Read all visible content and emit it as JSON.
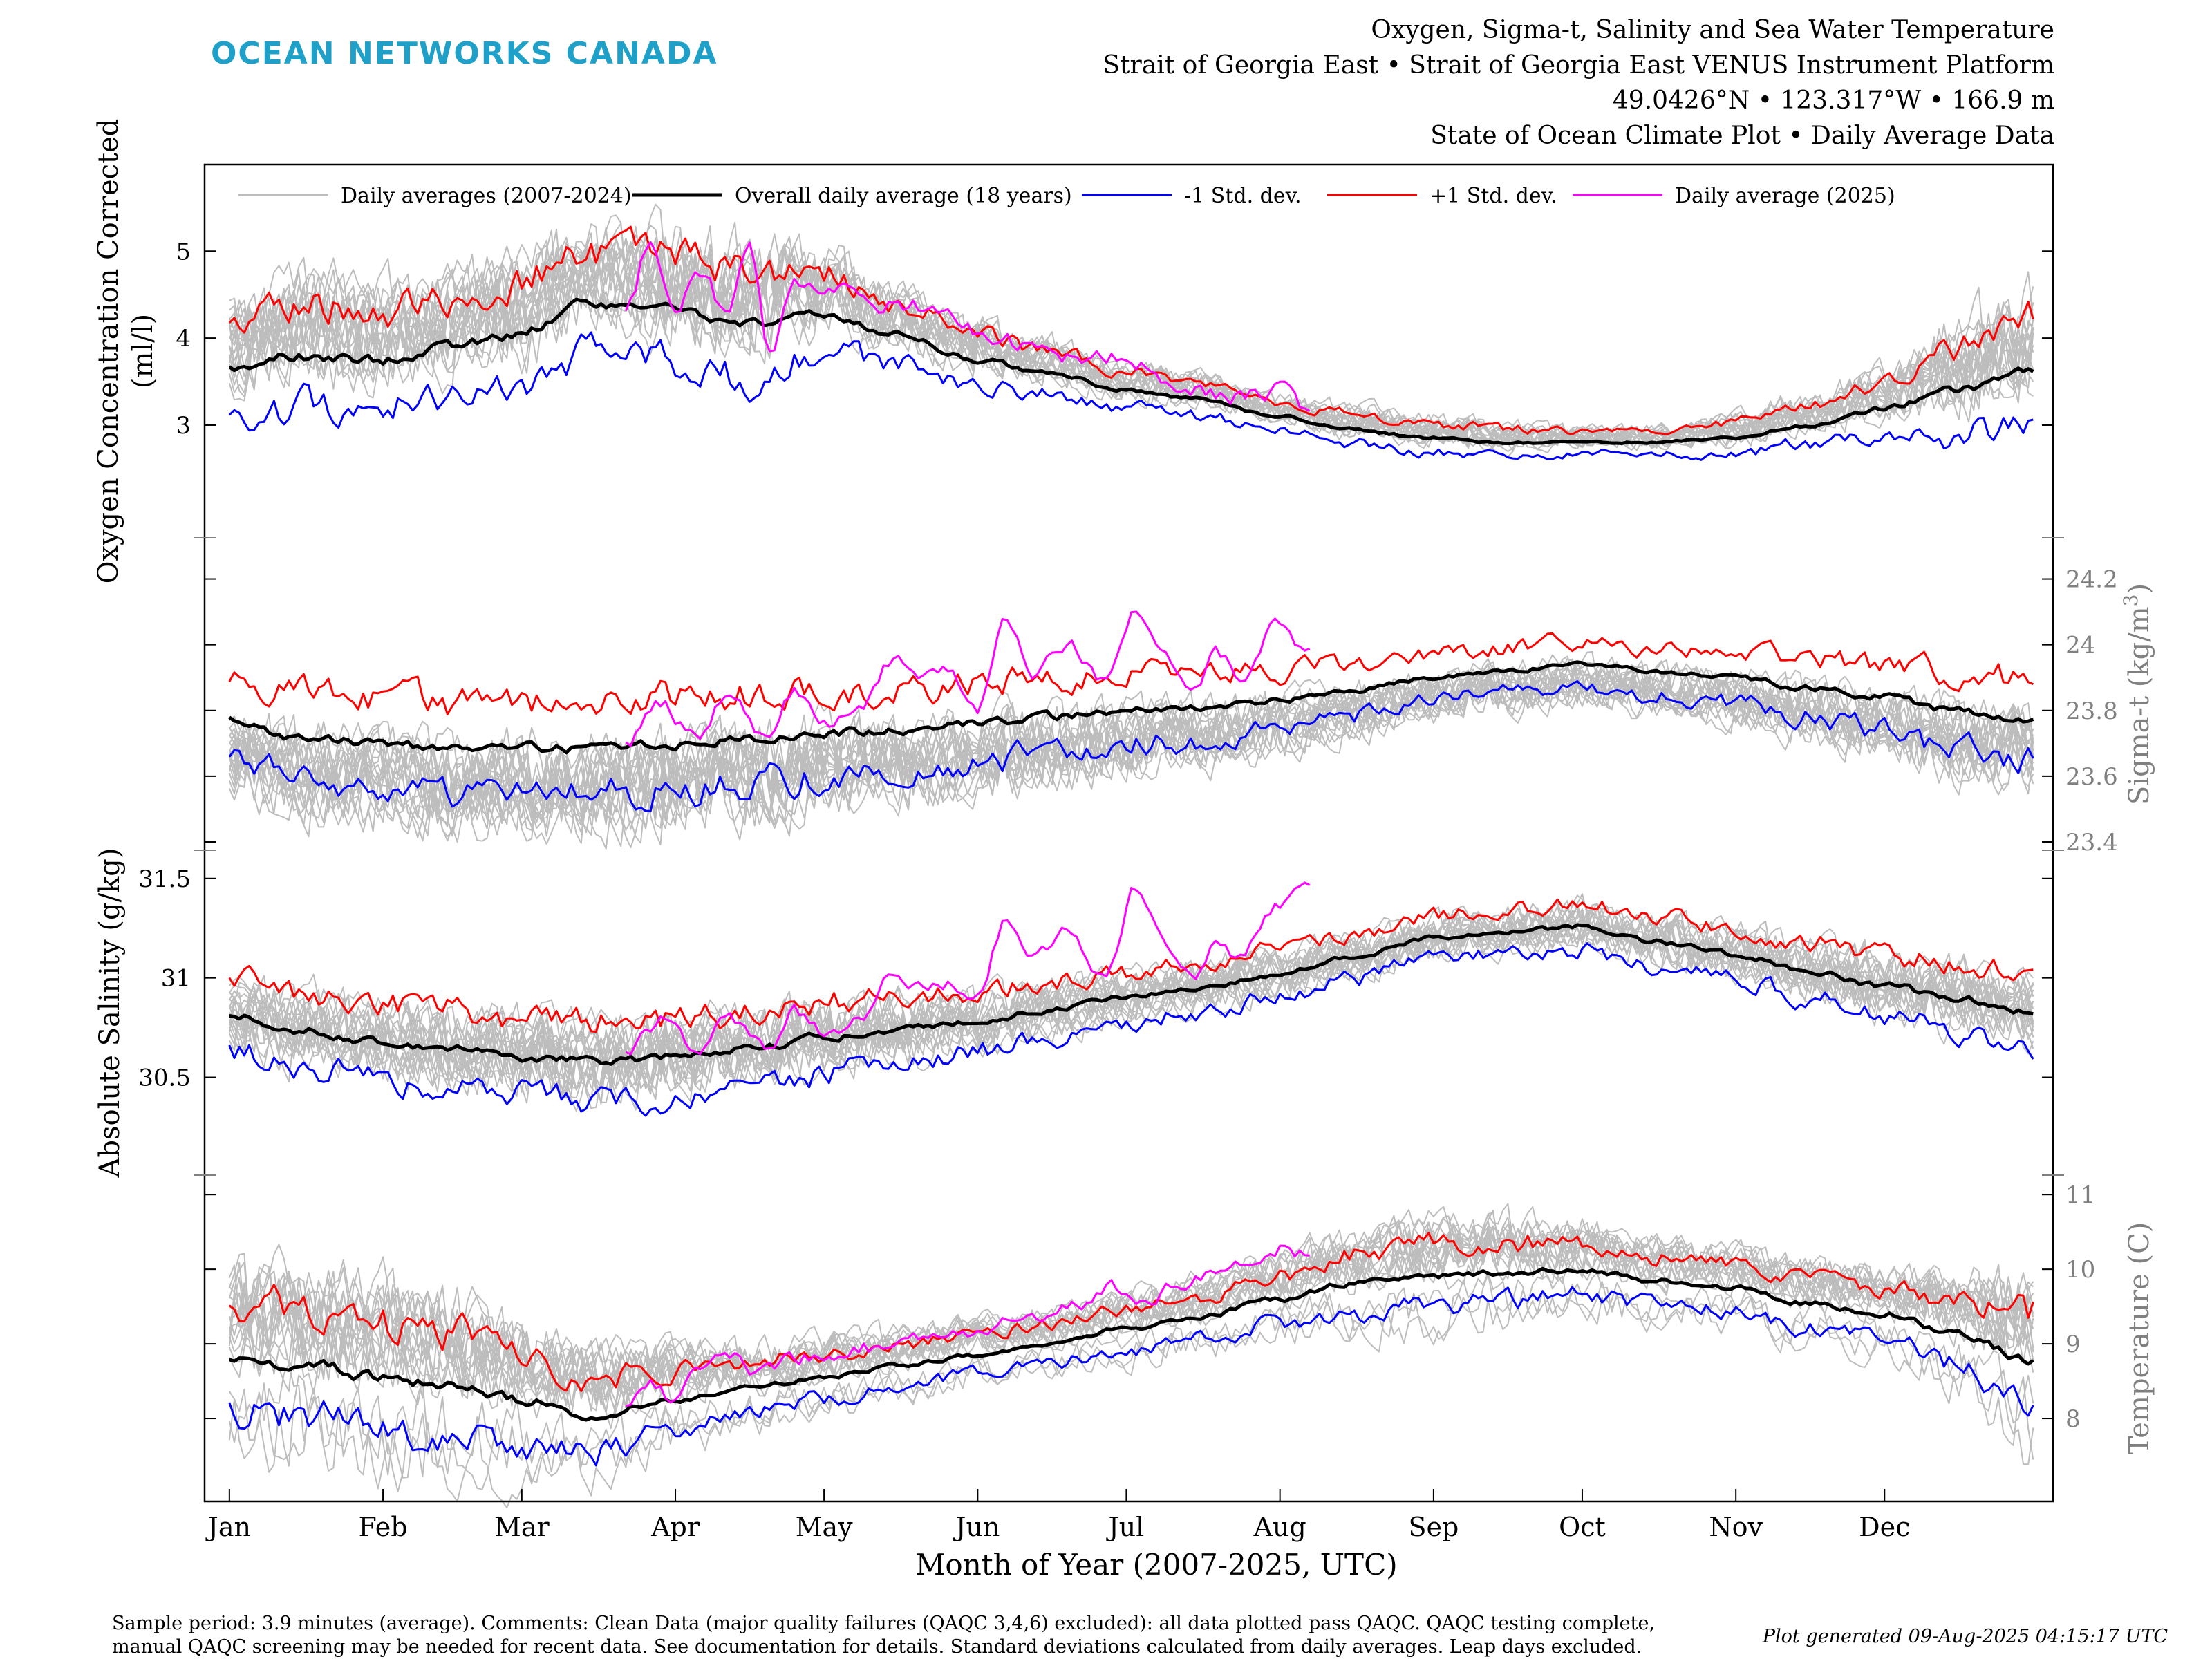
{
  "brand": "OCEAN NETWORKS CANADA",
  "header": {
    "line1": "Oxygen, Sigma-t, Salinity and Sea Water Temperature",
    "line2": "Strait of Georgia East • Strait of Georgia East VENUS Instrument Platform",
    "line3": "49.0426°N • 123.317°W • 166.9 m",
    "line4": "State of Ocean Climate Plot • Daily Average Data"
  },
  "footer": {
    "line1": "Sample period: 3.9 minutes (average). Comments: Clean Data (major quality failures (QAQC 3,4,6) excluded): all data plotted pass QAQC. QAQC testing complete,",
    "line2": "manual QAQC screening may be needed for recent data. See documentation for details. Standard deviations calculated from daily averages. Leap days excluded.",
    "generated": "Plot generated 09-Aug-2025 04:15:17 UTC"
  },
  "colors": {
    "brand": "#1ea0c8",
    "historical": "#bdbdbd",
    "overall_mean": "#000000",
    "minus_std": "#0000ff",
    "plus_std": "#ff0000",
    "current_year": "#ff00ff",
    "axis_gray": "#808080"
  },
  "chart_data": {
    "type": "line",
    "xlabel": "Month of Year (2007-2025, UTC)",
    "x_ticks": [
      "Jan",
      "Feb",
      "Mar",
      "Apr",
      "May",
      "Jun",
      "Jul",
      "Aug",
      "Sep",
      "Oct",
      "Nov",
      "Dec"
    ],
    "x_tick_days": [
      1,
      32,
      60,
      91,
      121,
      152,
      182,
      213,
      244,
      274,
      305,
      335
    ],
    "xlim": [
      -4,
      369
    ],
    "legend": [
      {
        "label": "Daily averages (2007-2024)",
        "key": "historical"
      },
      {
        "label": "Overall daily average (18 years)",
        "key": "overall_mean"
      },
      {
        "label": "-1 Std. dev.",
        "key": "minus_std"
      },
      {
        "label": "+1 Std. dev.",
        "key": "plus_std"
      },
      {
        "label": "Daily average (2025)",
        "key": "current_year"
      }
    ],
    "legend_position": "top",
    "historical_years": 18,
    "panels": [
      {
        "variable": "Oxygen Concentration Corrected",
        "ylabel_line1": "Oxygen Concentration Corrected",
        "ylabel_line2": "(ml/l)",
        "axis_side": "left",
        "ylim": [
          1.8,
          5.9
        ],
        "ticks": [
          "3",
          "4",
          "5"
        ],
        "tick_values": [
          3,
          4,
          5
        ],
        "anchors_day": [
          1,
          15,
          32,
          46,
          60,
          74,
          91,
          105,
          121,
          135,
          152,
          166,
          182,
          196,
          213,
          227,
          244,
          258,
          274,
          288,
          305,
          319,
          335,
          349,
          365
        ],
        "mean": [
          3.65,
          3.8,
          3.75,
          3.9,
          4.05,
          4.4,
          4.35,
          4.15,
          4.3,
          4.05,
          3.75,
          3.6,
          3.4,
          3.3,
          3.1,
          2.95,
          2.85,
          2.8,
          2.8,
          2.8,
          2.85,
          3.0,
          3.2,
          3.4,
          3.65
        ],
        "std": [
          0.55,
          0.6,
          0.55,
          0.55,
          0.65,
          0.55,
          0.6,
          0.6,
          0.45,
          0.35,
          0.3,
          0.25,
          0.2,
          0.2,
          0.15,
          0.18,
          0.16,
          0.16,
          0.12,
          0.12,
          0.18,
          0.22,
          0.3,
          0.5,
          0.6
        ],
        "year_2025": {
          "anchors_day": [
            81,
            86,
            91,
            96,
            101,
            106,
            110,
            115,
            120,
            126,
            134,
            145,
            152,
            160,
            170,
            182,
            190,
            197,
            204,
            213,
            219
          ],
          "values": [
            4.3,
            5.1,
            4.4,
            4.8,
            4.3,
            5.0,
            3.8,
            4.7,
            4.5,
            4.6,
            4.4,
            4.3,
            4.1,
            3.95,
            3.75,
            3.8,
            3.55,
            3.4,
            3.35,
            3.4,
            3.2
          ]
        }
      },
      {
        "variable": "Sigma-t",
        "ylabel_line1": "Sigma-t (kg/m",
        "ylabel_sup": "3",
        "ylabel_close": ")",
        "axis_side": "right",
        "ylim": [
          23.4,
          24.3
        ],
        "ticks": [
          "23.4",
          "23.6",
          "23.8",
          "24",
          "24.2"
        ],
        "tick_values": [
          23.4,
          23.6,
          23.8,
          24.0,
          24.2
        ],
        "anchors_day": [
          1,
          15,
          32,
          46,
          60,
          74,
          91,
          105,
          121,
          135,
          152,
          166,
          182,
          196,
          213,
          227,
          244,
          258,
          274,
          288,
          305,
          319,
          335,
          349,
          365
        ],
        "mean": [
          23.77,
          23.72,
          23.7,
          23.68,
          23.69,
          23.68,
          23.7,
          23.71,
          23.73,
          23.74,
          23.76,
          23.78,
          23.8,
          23.81,
          23.83,
          23.86,
          23.9,
          23.92,
          23.94,
          23.92,
          23.9,
          23.87,
          23.84,
          23.8,
          23.77
        ],
        "std": [
          0.12,
          0.13,
          0.13,
          0.14,
          0.14,
          0.14,
          0.14,
          0.14,
          0.13,
          0.12,
          0.12,
          0.12,
          0.11,
          0.1,
          0.09,
          0.08,
          0.07,
          0.07,
          0.07,
          0.07,
          0.08,
          0.09,
          0.1,
          0.12,
          0.12
        ],
        "year_2025": {
          "anchors_day": [
            81,
            88,
            95,
            102,
            110,
            115,
            122,
            128,
            135,
            140,
            146,
            152,
            158,
            163,
            170,
            178,
            184,
            190,
            196,
            200,
            205,
            212,
            219
          ],
          "values": [
            23.7,
            23.82,
            23.72,
            23.85,
            23.7,
            23.86,
            23.75,
            23.8,
            23.95,
            23.88,
            23.92,
            23.8,
            24.08,
            23.9,
            24.0,
            23.88,
            24.12,
            23.95,
            23.88,
            23.98,
            23.9,
            24.05,
            23.98
          ]
        }
      },
      {
        "variable": "Absolute Salinity",
        "ylabel_line1": "Absolute Salinity (g/kg)",
        "axis_side": "left",
        "ylim": [
          30.05,
          31.6
        ],
        "ticks": [
          "30.5",
          "31",
          "31.5"
        ],
        "tick_values": [
          30.5,
          31.0,
          31.5
        ],
        "anchors_day": [
          1,
          15,
          32,
          46,
          60,
          74,
          91,
          105,
          121,
          135,
          152,
          166,
          182,
          196,
          213,
          227,
          244,
          258,
          274,
          288,
          305,
          319,
          335,
          349,
          365
        ],
        "mean": [
          30.82,
          30.74,
          30.68,
          30.64,
          30.6,
          30.58,
          30.6,
          30.64,
          30.7,
          30.74,
          30.78,
          30.84,
          30.9,
          30.95,
          31.02,
          31.1,
          31.2,
          31.23,
          31.26,
          31.18,
          31.12,
          31.04,
          30.96,
          30.9,
          30.83
        ],
        "std": [
          0.18,
          0.19,
          0.19,
          0.2,
          0.2,
          0.2,
          0.19,
          0.19,
          0.18,
          0.17,
          0.15,
          0.14,
          0.12,
          0.12,
          0.12,
          0.11,
          0.11,
          0.11,
          0.12,
          0.12,
          0.13,
          0.14,
          0.16,
          0.17,
          0.18
        ],
        "year_2025": {
          "anchors_day": [
            81,
            88,
            95,
            102,
            110,
            115,
            122,
            128,
            135,
            140,
            146,
            152,
            158,
            163,
            170,
            178,
            184,
            190,
            196,
            200,
            205,
            212,
            219
          ],
          "values": [
            30.62,
            30.78,
            30.64,
            30.8,
            30.62,
            30.82,
            30.7,
            30.8,
            31.05,
            30.95,
            30.98,
            30.9,
            31.3,
            31.08,
            31.22,
            31.02,
            31.45,
            31.15,
            31.02,
            31.18,
            31.1,
            31.35,
            31.5
          ]
        }
      },
      {
        "variable": "Temperature",
        "ylabel_line1": "Temperature (C)",
        "axis_side": "right",
        "ylim": [
          7.0,
          11.15
        ],
        "ticks": [
          "8",
          "9",
          "10",
          "11"
        ],
        "tick_values": [
          8,
          9,
          10,
          11
        ],
        "anchors_day": [
          1,
          15,
          32,
          46,
          60,
          74,
          91,
          105,
          121,
          135,
          152,
          166,
          182,
          196,
          213,
          227,
          244,
          258,
          274,
          288,
          305,
          319,
          335,
          349,
          365
        ],
        "mean": [
          8.8,
          8.75,
          8.55,
          8.45,
          8.25,
          8.05,
          8.25,
          8.4,
          8.55,
          8.7,
          8.85,
          9.0,
          9.2,
          9.35,
          9.6,
          9.8,
          9.9,
          9.95,
          10.0,
          9.85,
          9.75,
          9.55,
          9.4,
          9.15,
          8.75
        ],
        "std": [
          0.7,
          0.72,
          0.72,
          0.68,
          0.6,
          0.5,
          0.4,
          0.34,
          0.3,
          0.28,
          0.26,
          0.26,
          0.28,
          0.3,
          0.34,
          0.38,
          0.42,
          0.4,
          0.36,
          0.32,
          0.3,
          0.32,
          0.34,
          0.42,
          0.7
        ],
        "year_2025": {
          "anchors_day": [
            81,
            86,
            91,
            96,
            102,
            108,
            115,
            122,
            130,
            140,
            150,
            160,
            170,
            180,
            186,
            192,
            200,
            207,
            213,
            219
          ],
          "values": [
            8.15,
            8.5,
            8.2,
            8.7,
            8.9,
            8.6,
            8.8,
            8.9,
            8.95,
            9.05,
            9.2,
            9.35,
            9.5,
            9.75,
            9.6,
            9.8,
            9.95,
            10.05,
            10.3,
            10.2
          ]
        }
      }
    ]
  }
}
